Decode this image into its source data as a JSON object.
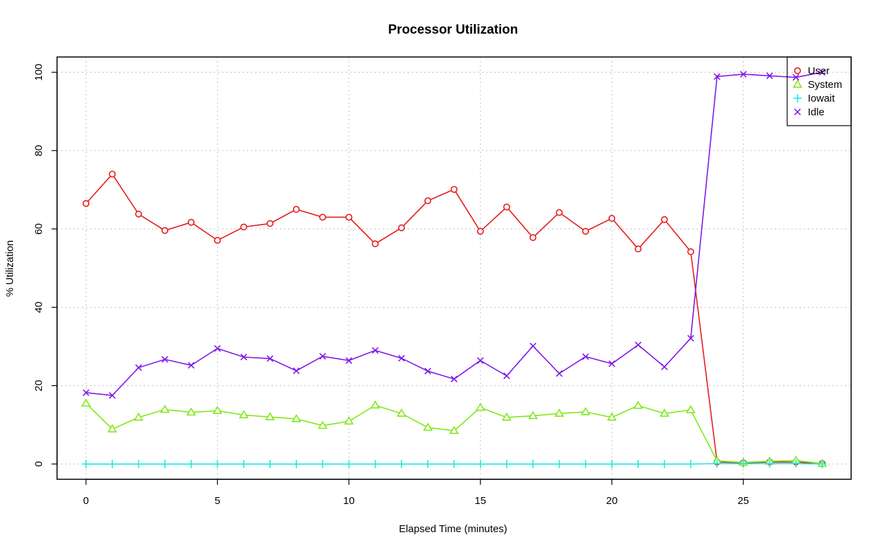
{
  "chart_data": {
    "type": "line",
    "title": "Processor Utilization",
    "xlabel": "Elapsed Time (minutes)",
    "ylabel": "% Utilization",
    "xlim": [
      -1.1,
      29.1
    ],
    "ylim": [
      -3.9,
      103.9
    ],
    "xticks": [
      0,
      5,
      10,
      15,
      20,
      25
    ],
    "yticks": [
      0,
      20,
      40,
      60,
      80,
      100
    ],
    "grid": true,
    "legend_position": "top-right",
    "x": [
      0,
      1,
      2,
      3,
      4,
      5,
      6,
      7,
      8,
      9,
      10,
      11,
      12,
      13,
      14,
      15,
      16,
      17,
      18,
      19,
      20,
      21,
      22,
      23,
      24,
      25,
      26,
      27,
      28
    ],
    "series": [
      {
        "name": "User",
        "color": "#e41a1c",
        "marker": "circle",
        "values": [
          66.5,
          74,
          63.8,
          59.6,
          61.7,
          57.1,
          60.5,
          61.4,
          65,
          63,
          63,
          56.2,
          60.3,
          67.2,
          70.1,
          59.4,
          65.6,
          57.8,
          64.2,
          59.4,
          62.7,
          54.9,
          62.4,
          54.2,
          0.5,
          0.3,
          0.5,
          0.5,
          0.1
        ]
      },
      {
        "name": "System",
        "color": "#7fe817",
        "marker": "triangle",
        "values": [
          15.5,
          8.9,
          11.9,
          13.9,
          13.2,
          13.6,
          12.5,
          12,
          11.5,
          9.8,
          10.9,
          15,
          12.9,
          9.3,
          8.5,
          14.4,
          11.9,
          12.3,
          12.9,
          13.3,
          11.9,
          14.9,
          12.9,
          13.8,
          0.8,
          0.4,
          0.7,
          0.9,
          0.1
        ]
      },
      {
        "name": "Iowait",
        "color": "#17e8e8",
        "marker": "plus",
        "values": [
          0,
          0,
          0,
          0,
          0,
          0,
          0,
          0,
          0,
          0,
          0,
          0,
          0,
          0,
          0,
          0,
          0,
          0,
          0,
          0,
          0,
          0,
          0,
          0,
          0.1,
          0.1,
          0.1,
          0.1,
          0
        ]
      },
      {
        "name": "Idle",
        "color": "#7f17e8",
        "marker": "cross",
        "values": [
          18.2,
          17.5,
          24.6,
          26.7,
          25.2,
          29.5,
          27.3,
          26.9,
          23.8,
          27.5,
          26.4,
          29,
          27,
          23.7,
          21.7,
          26.4,
          22.5,
          30.1,
          23.1,
          27.4,
          25.6,
          30.4,
          24.8,
          32.1,
          98.9,
          99.5,
          99.1,
          98.7,
          100
        ]
      }
    ]
  }
}
